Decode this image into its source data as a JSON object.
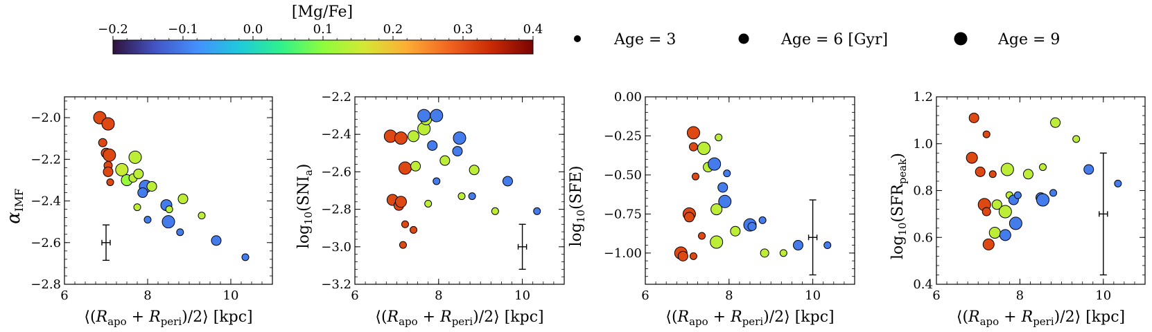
{
  "colorbar": {
    "label": "[Mg/Fe]",
    "min": -0.2,
    "max": 0.4,
    "ticks": [
      -0.2,
      -0.1,
      0.0,
      0.1,
      0.2,
      0.3,
      0.4
    ],
    "tick_labels": [
      "−0.2",
      "−0.1",
      "0.0",
      "0.1",
      "0.2",
      "0.3",
      "0.4"
    ],
    "colormap": "turbo"
  },
  "size_legend": [
    {
      "label": "Age = 3",
      "age": 3
    },
    {
      "label": "Age = 6 [Gyr]",
      "age": 6
    },
    {
      "label": "Age = 9",
      "age": 9
    }
  ],
  "chart_data": [
    {
      "type": "scatter",
      "xlabel": "⟨(R_apo + R_peri)/2⟩ [kpc]",
      "ylabel": "α_IMF",
      "xlim": [
        6,
        11
      ],
      "ylim": [
        -2.8,
        -1.9
      ],
      "xticks": [
        6,
        8,
        10
      ],
      "yticks": [
        -2.8,
        -2.6,
        -2.4,
        -2.2,
        -2.0
      ],
      "ytick_labels": [
        "−2.8",
        "−2.6",
        "−2.4",
        "−2.2",
        "−2.0"
      ],
      "error_bar": {
        "x": 7.0,
        "y": -2.6,
        "xerr": 0.1,
        "yerr": 0.085
      },
      "points": [
        {
          "x": 6.85,
          "y": -2.0,
          "mgfe": 0.31,
          "age": 8
        },
        {
          "x": 7.05,
          "y": -2.03,
          "mgfe": 0.31,
          "age": 8
        },
        {
          "x": 6.92,
          "y": -2.12,
          "mgfe": 0.31,
          "age": 5
        },
        {
          "x": 7.0,
          "y": -2.17,
          "mgfe": 0.31,
          "age": 6
        },
        {
          "x": 7.08,
          "y": -2.18,
          "mgfe": 0.31,
          "age": 8
        },
        {
          "x": 7.05,
          "y": -2.23,
          "mgfe": 0.31,
          "age": 5
        },
        {
          "x": 7.05,
          "y": -2.26,
          "mgfe": 0.31,
          "age": 6
        },
        {
          "x": 7.1,
          "y": -2.31,
          "mgfe": 0.31,
          "age": 4
        },
        {
          "x": 7.38,
          "y": -2.25,
          "mgfe": 0.15,
          "age": 8
        },
        {
          "x": 7.5,
          "y": -2.3,
          "mgfe": 0.11,
          "age": 7
        },
        {
          "x": 7.65,
          "y": -2.29,
          "mgfe": 0.14,
          "age": 5
        },
        {
          "x": 7.7,
          "y": -2.19,
          "mgfe": 0.14,
          "age": 8
        },
        {
          "x": 7.78,
          "y": -2.27,
          "mgfe": 0.14,
          "age": 6
        },
        {
          "x": 7.95,
          "y": -2.33,
          "mgfe": -0.1,
          "age": 8
        },
        {
          "x": 7.88,
          "y": -2.36,
          "mgfe": -0.1,
          "age": 6
        },
        {
          "x": 8.1,
          "y": -2.33,
          "mgfe": 0.14,
          "age": 6
        },
        {
          "x": 7.75,
          "y": -2.43,
          "mgfe": 0.14,
          "age": 4
        },
        {
          "x": 8.0,
          "y": -2.49,
          "mgfe": -0.1,
          "age": 4
        },
        {
          "x": 8.45,
          "y": -2.42,
          "mgfe": -0.1,
          "age": 7
        },
        {
          "x": 8.5,
          "y": -2.5,
          "mgfe": -0.1,
          "age": 8
        },
        {
          "x": 8.52,
          "y": -2.44,
          "mgfe": 0.14,
          "age": 4
        },
        {
          "x": 8.78,
          "y": -2.55,
          "mgfe": -0.1,
          "age": 4
        },
        {
          "x": 8.85,
          "y": -2.39,
          "mgfe": 0.14,
          "age": 6
        },
        {
          "x": 9.3,
          "y": -2.47,
          "mgfe": 0.14,
          "age": 4
        },
        {
          "x": 9.65,
          "y": -2.59,
          "mgfe": -0.1,
          "age": 6
        },
        {
          "x": 10.35,
          "y": -2.67,
          "mgfe": -0.1,
          "age": 4
        }
      ]
    },
    {
      "type": "scatter",
      "xlabel": "⟨(R_apo + R_peri)/2⟩ [kpc]",
      "ylabel": "log10(SNIa)",
      "xlim": [
        6,
        11
      ],
      "ylim": [
        -3.2,
        -2.2
      ],
      "xticks": [
        6,
        8,
        10
      ],
      "yticks": [
        -3.2,
        -3.0,
        -2.8,
        -2.6,
        -2.4,
        -2.2
      ],
      "ytick_labels": [
        "−3.2",
        "−3.0",
        "−2.8",
        "−2.6",
        "−2.4",
        "−2.2"
      ],
      "error_bar": {
        "x": 10.0,
        "y": -3.0,
        "xerr": 0.1,
        "yerr": 0.12
      },
      "points": [
        {
          "x": 6.85,
          "y": -2.41,
          "mgfe": 0.31,
          "age": 8
        },
        {
          "x": 7.1,
          "y": -2.42,
          "mgfe": 0.31,
          "age": 8
        },
        {
          "x": 7.2,
          "y": -2.58,
          "mgfe": 0.31,
          "age": 8
        },
        {
          "x": 6.9,
          "y": -2.75,
          "mgfe": 0.31,
          "age": 7
        },
        {
          "x": 7.05,
          "y": -2.78,
          "mgfe": 0.31,
          "age": 6
        },
        {
          "x": 7.1,
          "y": -2.76,
          "mgfe": 0.31,
          "age": 7
        },
        {
          "x": 7.2,
          "y": -2.88,
          "mgfe": 0.31,
          "age": 4
        },
        {
          "x": 7.4,
          "y": -2.91,
          "mgfe": 0.31,
          "age": 4
        },
        {
          "x": 7.15,
          "y": -2.99,
          "mgfe": 0.31,
          "age": 4
        },
        {
          "x": 7.4,
          "y": -2.41,
          "mgfe": 0.14,
          "age": 7
        },
        {
          "x": 7.65,
          "y": -2.37,
          "mgfe": 0.14,
          "age": 8
        },
        {
          "x": 7.7,
          "y": -2.32,
          "mgfe": 0.14,
          "age": 7
        },
        {
          "x": 7.65,
          "y": -2.3,
          "mgfe": -0.1,
          "age": 8
        },
        {
          "x": 7.95,
          "y": -2.3,
          "mgfe": -0.1,
          "age": 8
        },
        {
          "x": 7.85,
          "y": -2.46,
          "mgfe": -0.1,
          "age": 6
        },
        {
          "x": 7.45,
          "y": -2.57,
          "mgfe": 0.14,
          "age": 6
        },
        {
          "x": 8.15,
          "y": -2.54,
          "mgfe": 0.14,
          "age": 6
        },
        {
          "x": 7.95,
          "y": -2.65,
          "mgfe": -0.1,
          "age": 4
        },
        {
          "x": 7.75,
          "y": -2.77,
          "mgfe": 0.14,
          "age": 4
        },
        {
          "x": 8.5,
          "y": -2.42,
          "mgfe": -0.1,
          "age": 8
        },
        {
          "x": 8.45,
          "y": -2.49,
          "mgfe": -0.1,
          "age": 6
        },
        {
          "x": 8.85,
          "y": -2.59,
          "mgfe": 0.14,
          "age": 6
        },
        {
          "x": 8.55,
          "y": -2.73,
          "mgfe": 0.14,
          "age": 4
        },
        {
          "x": 8.8,
          "y": -2.73,
          "mgfe": -0.1,
          "age": 4
        },
        {
          "x": 9.35,
          "y": -2.81,
          "mgfe": 0.14,
          "age": 4
        },
        {
          "x": 9.65,
          "y": -2.65,
          "mgfe": -0.1,
          "age": 6
        },
        {
          "x": 10.35,
          "y": -2.81,
          "mgfe": -0.1,
          "age": 4
        }
      ]
    },
    {
      "type": "scatter",
      "xlabel": "⟨(R_apo + R_peri)/2⟩ [kpc]",
      "ylabel": "log10(SFE)",
      "xlim": [
        6,
        11
      ],
      "ylim": [
        -1.2,
        0.0
      ],
      "xticks": [
        6,
        8,
        10
      ],
      "yticks": [
        -1.0,
        -0.75,
        -0.5,
        -0.25,
        0.0
      ],
      "ytick_labels": [
        "−1.00",
        "−0.75",
        "−0.50",
        "−0.25",
        "0.00"
      ],
      "error_bar": {
        "x": 10.0,
        "y": -0.9,
        "xerr": 0.1,
        "yerr": 0.24
      },
      "points": [
        {
          "x": 7.15,
          "y": -0.23,
          "mgfe": 0.31,
          "age": 8
        },
        {
          "x": 7.15,
          "y": -0.32,
          "mgfe": 0.31,
          "age": 5
        },
        {
          "x": 7.2,
          "y": -0.51,
          "mgfe": 0.31,
          "age": 4
        },
        {
          "x": 7.05,
          "y": -0.75,
          "mgfe": 0.31,
          "age": 8
        },
        {
          "x": 7.05,
          "y": -0.77,
          "mgfe": 0.31,
          "age": 6
        },
        {
          "x": 7.35,
          "y": -0.89,
          "mgfe": 0.31,
          "age": 4
        },
        {
          "x": 6.85,
          "y": -1.0,
          "mgfe": 0.31,
          "age": 8
        },
        {
          "x": 6.9,
          "y": -1.02,
          "mgfe": 0.31,
          "age": 6
        },
        {
          "x": 7.15,
          "y": -1.02,
          "mgfe": 0.31,
          "age": 4
        },
        {
          "x": 7.4,
          "y": -0.33,
          "mgfe": 0.14,
          "age": 8
        },
        {
          "x": 7.75,
          "y": -0.26,
          "mgfe": 0.14,
          "age": 4
        },
        {
          "x": 7.5,
          "y": -0.45,
          "mgfe": 0.14,
          "age": 6
        },
        {
          "x": 7.65,
          "y": -0.43,
          "mgfe": -0.1,
          "age": 8
        },
        {
          "x": 7.95,
          "y": -0.49,
          "mgfe": -0.1,
          "age": 4
        },
        {
          "x": 7.85,
          "y": -0.58,
          "mgfe": -0.1,
          "age": 6
        },
        {
          "x": 7.9,
          "y": -0.67,
          "mgfe": -0.1,
          "age": 8
        },
        {
          "x": 7.7,
          "y": -0.72,
          "mgfe": 0.14,
          "age": 7
        },
        {
          "x": 7.7,
          "y": -0.93,
          "mgfe": 0.14,
          "age": 8
        },
        {
          "x": 8.15,
          "y": -0.86,
          "mgfe": 0.14,
          "age": 6
        },
        {
          "x": 8.5,
          "y": -0.82,
          "mgfe": -0.1,
          "age": 8
        },
        {
          "x": 8.55,
          "y": -0.83,
          "mgfe": -0.1,
          "age": 5
        },
        {
          "x": 8.8,
          "y": -0.79,
          "mgfe": -0.1,
          "age": 4
        },
        {
          "x": 8.85,
          "y": -1.0,
          "mgfe": 0.14,
          "age": 5
        },
        {
          "x": 9.3,
          "y": -1.0,
          "mgfe": 0.14,
          "age": 4
        },
        {
          "x": 9.65,
          "y": -0.95,
          "mgfe": -0.1,
          "age": 6
        },
        {
          "x": 10.35,
          "y": -0.95,
          "mgfe": -0.1,
          "age": 4
        }
      ]
    },
    {
      "type": "scatter",
      "xlabel": "⟨(R_apo + R_peri)/2⟩ [kpc]",
      "ylabel": "log10(SFRpeak)",
      "xlim": [
        6,
        11
      ],
      "ylim": [
        0.4,
        1.2
      ],
      "xticks": [
        6,
        8,
        10
      ],
      "yticks": [
        0.4,
        0.6,
        0.8,
        1.0,
        1.2
      ],
      "ytick_labels": [
        "0.4",
        "0.6",
        "0.8",
        "1.0",
        "1.2"
      ],
      "error_bar": {
        "x": 10.0,
        "y": 0.7,
        "xerr": 0.1,
        "yerr": 0.26
      },
      "points": [
        {
          "x": 6.9,
          "y": 1.11,
          "mgfe": 0.31,
          "age": 6
        },
        {
          "x": 7.2,
          "y": 1.04,
          "mgfe": 0.31,
          "age": 4
        },
        {
          "x": 6.85,
          "y": 0.94,
          "mgfe": 0.31,
          "age": 7
        },
        {
          "x": 7.05,
          "y": 0.88,
          "mgfe": 0.31,
          "age": 6
        },
        {
          "x": 7.35,
          "y": 0.87,
          "mgfe": 0.31,
          "age": 4
        },
        {
          "x": 7.15,
          "y": 0.74,
          "mgfe": 0.31,
          "age": 8
        },
        {
          "x": 7.2,
          "y": 0.71,
          "mgfe": 0.31,
          "age": 5
        },
        {
          "x": 7.25,
          "y": 0.57,
          "mgfe": 0.31,
          "age": 7
        },
        {
          "x": 7.45,
          "y": 0.74,
          "mgfe": 0.14,
          "age": 6
        },
        {
          "x": 7.7,
          "y": 0.89,
          "mgfe": 0.14,
          "age": 8
        },
        {
          "x": 7.75,
          "y": 0.78,
          "mgfe": 0.14,
          "age": 4
        },
        {
          "x": 7.65,
          "y": 0.71,
          "mgfe": 0.14,
          "age": 8
        },
        {
          "x": 7.4,
          "y": 0.62,
          "mgfe": 0.14,
          "age": 7
        },
        {
          "x": 7.85,
          "y": 0.76,
          "mgfe": -0.1,
          "age": 6
        },
        {
          "x": 7.95,
          "y": 0.78,
          "mgfe": -0.1,
          "age": 4
        },
        {
          "x": 7.65,
          "y": 0.61,
          "mgfe": -0.1,
          "age": 7
        },
        {
          "x": 7.9,
          "y": 0.66,
          "mgfe": -0.1,
          "age": 8
        },
        {
          "x": 8.2,
          "y": 0.87,
          "mgfe": 0.14,
          "age": 6
        },
        {
          "x": 8.55,
          "y": 0.9,
          "mgfe": 0.14,
          "age": 4
        },
        {
          "x": 8.5,
          "y": 0.77,
          "mgfe": -0.1,
          "age": 6
        },
        {
          "x": 8.55,
          "y": 0.76,
          "mgfe": -0.1,
          "age": 8
        },
        {
          "x": 8.8,
          "y": 0.79,
          "mgfe": -0.1,
          "age": 4
        },
        {
          "x": 8.85,
          "y": 1.09,
          "mgfe": 0.14,
          "age": 6
        },
        {
          "x": 9.35,
          "y": 1.02,
          "mgfe": 0.14,
          "age": 4
        },
        {
          "x": 9.65,
          "y": 0.89,
          "mgfe": -0.1,
          "age": 6
        },
        {
          "x": 10.35,
          "y": 0.83,
          "mgfe": -0.1,
          "age": 4
        }
      ]
    }
  ]
}
